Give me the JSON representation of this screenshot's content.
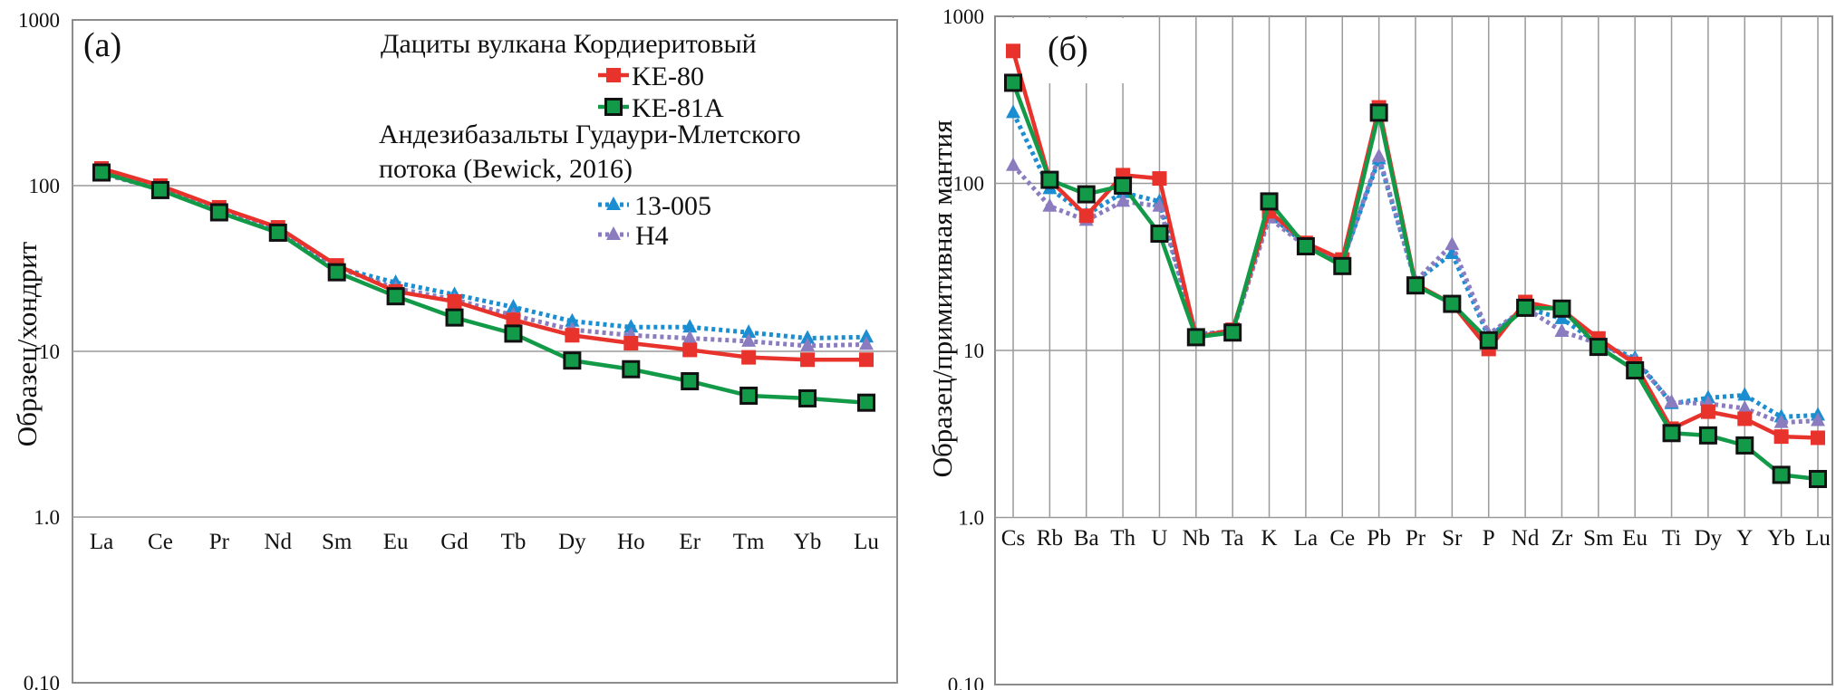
{
  "colors": {
    "KE-80": "#e8322c",
    "KE-81A": "#139a48",
    "13-005": "#1b8ed2",
    "H4": "#8b7cc0",
    "grid": "#9a9a9a",
    "frame": "#8c8c8c"
  },
  "chart_data": [
    {
      "type": "line",
      "panel_label": "(a)",
      "ylabel": "Образец/хондрит",
      "yscale": "log",
      "ylim": [
        0.1,
        1000
      ],
      "yticks": [
        "0.10",
        "1.0",
        "10",
        "100",
        "1000"
      ],
      "categories": [
        "La",
        "Ce",
        "Pr",
        "Nd",
        "Sm",
        "Eu",
        "Gd",
        "Tb",
        "Dy",
        "Ho",
        "Er",
        "Tm",
        "Yb",
        "Lu"
      ],
      "grid": "horizontal",
      "legend": {
        "placement": "top-right",
        "group1_title": "Дациты вулкана Кордиеритовый",
        "group2_title_line1": "Андезибазальты Гудаури-Млетского",
        "group2_title_line2": "потока (Bewick, 2016)",
        "entries": [
          "KE-80",
          "KE-81A",
          "13-005",
          "H4"
        ]
      },
      "series": [
        {
          "name": "KE-80",
          "style": "solid-square",
          "values": [
            127,
            100,
            74,
            56,
            33,
            23,
            20,
            15.5,
            12.5,
            11.2,
            10.2,
            9.2,
            8.9,
            8.9
          ]
        },
        {
          "name": "KE-81A",
          "style": "solid-square-outlined",
          "values": [
            120,
            94,
            69,
            52,
            30,
            21.5,
            16,
            12.8,
            8.8,
            7.8,
            6.6,
            5.4,
            5.2,
            4.9
          ]
        },
        {
          "name": "13-005",
          "style": "dotted-triangle",
          "values": [
            125,
            97,
            72,
            55,
            32,
            26,
            22,
            18.5,
            15.2,
            14,
            14,
            13,
            12,
            12.2
          ]
        },
        {
          "name": "H4",
          "style": "dotted-triangle",
          "values": [
            118,
            95,
            71,
            54,
            32,
            24,
            20.5,
            16.5,
            13.5,
            12.5,
            12,
            11.5,
            10.8,
            11
          ]
        }
      ]
    },
    {
      "type": "line",
      "panel_label": "(б)",
      "ylabel": "Образец/примитивная мантия",
      "yscale": "log",
      "ylim": [
        0.1,
        1000
      ],
      "yticks": [
        "0.10",
        "1.0",
        "10",
        "100",
        "1000"
      ],
      "categories": [
        "Cs",
        "Rb",
        "Ba",
        "Th",
        "U",
        "Nb",
        "Ta",
        "K",
        "La",
        "Ce",
        "Pb",
        "Pr",
        "Sr",
        "P",
        "Nd",
        "Zr",
        "Sm",
        "Eu",
        "Ti",
        "Dy",
        "Y",
        "Yb",
        "Lu"
      ],
      "grid": "both",
      "series": [
        {
          "name": "KE-80",
          "style": "solid-square",
          "values": [
            620,
            105,
            64,
            112,
            107,
            12,
            13.3,
            68,
            44,
            35,
            285,
            25,
            19,
            10.2,
            19.5,
            17.5,
            11.8,
            8.3,
            3.4,
            4.3,
            3.9,
            3.05,
            3.0
          ]
        },
        {
          "name": "KE-81A",
          "style": "solid-square-outlined",
          "values": [
            400,
            105,
            86,
            97,
            50,
            12,
            12.8,
            78,
            42,
            32,
            265,
            24.5,
            19,
            11.5,
            18,
            17.8,
            10.5,
            7.6,
            3.2,
            3.1,
            2.7,
            1.8,
            1.7
          ]
        },
        {
          "name": "13-005",
          "style": "dotted-triangle",
          "values": [
            265,
            93,
            65,
            88,
            78,
            12.5,
            13,
            65,
            43,
            34,
            140,
            26,
            38,
            12,
            18,
            15.5,
            11,
            9,
            4.8,
            5.2,
            5.4,
            4.0,
            4.1
          ]
        },
        {
          "name": "H4",
          "style": "dotted-triangle",
          "values": [
            128,
            73,
            60,
            78,
            73,
            12.5,
            13,
            62,
            42,
            34,
            145,
            26,
            43,
            12.5,
            18,
            13,
            11,
            8.7,
            4.9,
            4.8,
            4.5,
            3.7,
            3.8
          ]
        }
      ]
    }
  ]
}
